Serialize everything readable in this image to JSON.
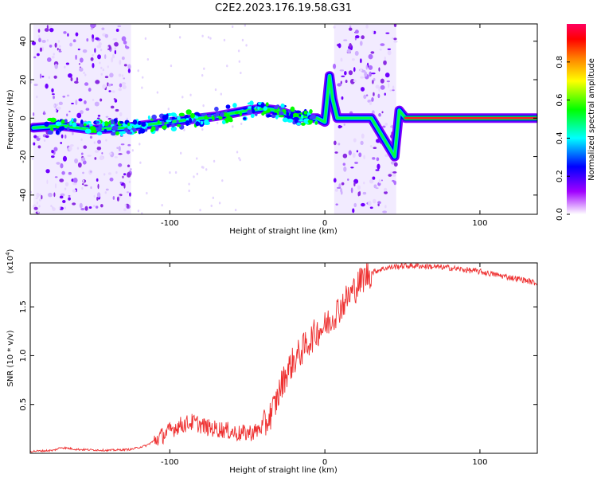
{
  "title": "C2E2.2023.176.19.58.G31",
  "chart_data": [
    {
      "type": "heatmap",
      "xlabel": "Height of straight line (km)",
      "ylabel": "Frequency (Hz)",
      "xlim": [
        -190,
        137
      ],
      "ylim": [
        -50,
        49
      ],
      "xticks": [
        -100,
        0,
        100
      ],
      "yticks": [
        -40,
        -20,
        0,
        20,
        40
      ],
      "colorbar": {
        "label": "Normalized spectral amplitude",
        "range": [
          0,
          1
        ],
        "ticks": [
          0.0,
          0.2,
          0.4,
          0.6,
          0.8
        ],
        "colors": [
          "#ffffff",
          "#a000ff",
          "#0000ff",
          "#00ffff",
          "#00ff00",
          "#ffff00",
          "#ff8000",
          "#ff0000",
          "#ff0060"
        ]
      },
      "trace": {
        "x": [
          -188,
          -170,
          -150,
          -130,
          -110,
          -90,
          -70,
          -50,
          -40,
          -30,
          -20,
          -10,
          -5,
          0,
          3,
          5,
          8,
          30,
          45,
          48,
          52,
          60,
          80,
          100,
          120,
          136
        ],
        "y": [
          -5,
          -4,
          -6,
          -5,
          -3,
          -1,
          1,
          4,
          5,
          4,
          1,
          0,
          0,
          -2,
          22,
          10,
          0,
          0,
          -20,
          4,
          0,
          0,
          0,
          0,
          0,
          0
        ]
      },
      "noise_bands": [
        [
          -188,
          -125
        ],
        [
          6,
          46
        ]
      ]
    },
    {
      "type": "line",
      "xlabel": "Height of straight line (km)",
      "ylabel": "SNR (10 * v/v)",
      "multiplier": "(x10",
      "multiplier_exp": "4",
      "multiplier_close": ")",
      "xlim": [
        -190,
        137
      ],
      "ylim": [
        0,
        1.95
      ],
      "xticks": [
        -100,
        0,
        100
      ],
      "yticks": [
        0.5,
        1.0,
        1.5
      ],
      "ytick_labels": [
        "0.5",
        "1.0",
        "1.5"
      ],
      "series": [
        {
          "color": "#ee3030",
          "x": [
            -190,
            -175,
            -170,
            -160,
            -140,
            -125,
            -115,
            -105,
            -95,
            -85,
            -75,
            -65,
            -55,
            -45,
            -38,
            -32,
            -28,
            -24,
            -20,
            -15,
            -10,
            -5,
            0,
            5,
            10,
            15,
            20,
            25,
            30,
            35,
            40,
            50,
            60,
            70,
            80,
            90,
            100,
            110,
            120,
            130,
            137
          ],
          "y": [
            0.02,
            0.03,
            0.06,
            0.04,
            0.03,
            0.04,
            0.08,
            0.18,
            0.28,
            0.32,
            0.26,
            0.24,
            0.2,
            0.22,
            0.3,
            0.5,
            0.7,
            0.85,
            0.95,
            1.05,
            1.15,
            1.25,
            1.3,
            1.4,
            1.5,
            1.6,
            1.7,
            1.8,
            1.85,
            1.88,
            1.9,
            1.92,
            1.92,
            1.91,
            1.9,
            1.88,
            1.86,
            1.83,
            1.8,
            1.77,
            1.74
          ]
        }
      ]
    }
  ]
}
